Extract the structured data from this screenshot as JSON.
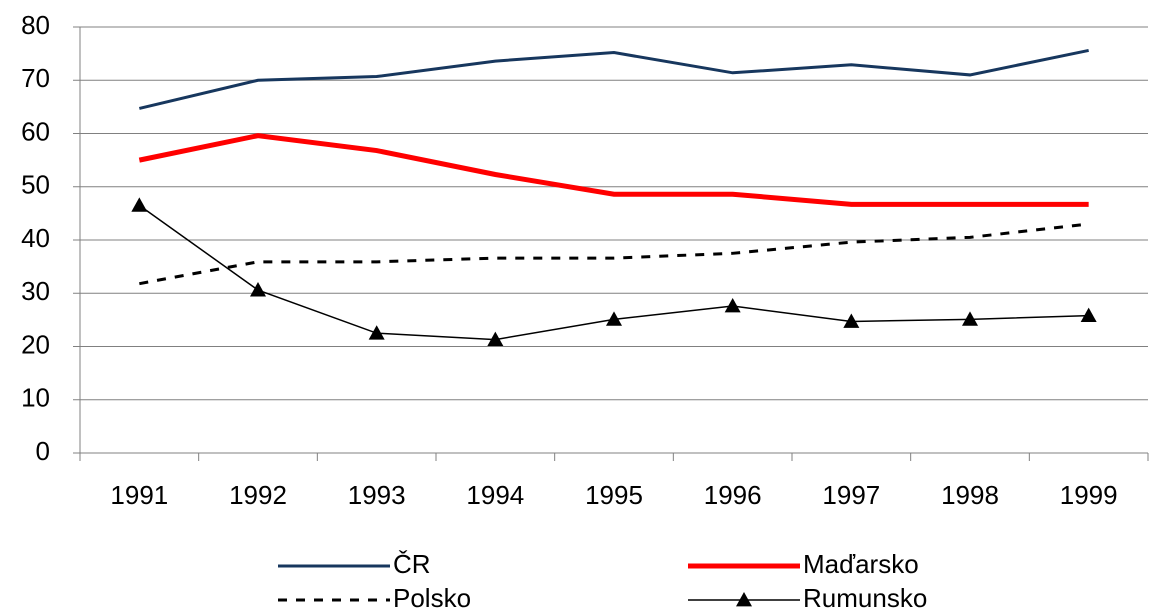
{
  "chart_data": {
    "type": "line",
    "categories": [
      "1991",
      "1992",
      "1993",
      "1994",
      "1995",
      "1996",
      "1997",
      "1998",
      "1999"
    ],
    "series": [
      {
        "name": "ČR",
        "color": "#17375e",
        "width": 3,
        "style": "solid",
        "values": [
          64.7,
          70,
          70.7,
          73.6,
          75.2,
          71.4,
          72.9,
          71,
          75.6
        ]
      },
      {
        "name": "Maďarsko",
        "color": "#ff0000",
        "width": 5,
        "style": "solid",
        "values": [
          55,
          59.6,
          56.8,
          52.3,
          48.6,
          48.6,
          46.7,
          46.7,
          46.7
        ]
      },
      {
        "name": "Polsko",
        "color": "#000000",
        "width": 3,
        "style": "dashed",
        "values": [
          31.8,
          35.9,
          35.9,
          36.6,
          36.6,
          37.5,
          39.6,
          40.5,
          43
        ]
      },
      {
        "name": "Rumunsko",
        "color": "#000000",
        "width": 1.5,
        "style": "solid",
        "marker": "triangle",
        "values": [
          46.5,
          30.6,
          22.5,
          21.3,
          25.1,
          27.6,
          24.7,
          25.1,
          25.8
        ]
      }
    ],
    "ylim": [
      0,
      80
    ],
    "yticks": [
      0,
      10,
      20,
      30,
      40,
      50,
      60,
      70,
      80
    ],
    "grid": true
  }
}
